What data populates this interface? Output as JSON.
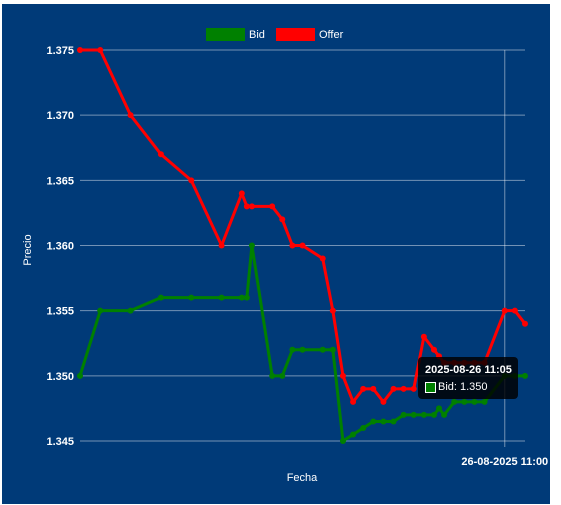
{
  "colors": {
    "panel_bg": "#003a78",
    "bid": "#008000",
    "offer": "#ff0000",
    "grid": "rgba(255,255,255,0.45)"
  },
  "chart_data": {
    "type": "line",
    "title": "",
    "xlabel": "Fecha",
    "ylabel": "Precio",
    "ylim": [
      1.345,
      1.375
    ],
    "y_ticks": [
      "1.375",
      "1.370",
      "1.365",
      "1.360",
      "1.355",
      "1.350",
      "1.345"
    ],
    "x_tick_labels": [
      "26-08-2025 11:00"
    ],
    "legend": {
      "position": "top",
      "entries": [
        "Bid",
        "Offer"
      ]
    },
    "grid": true,
    "x": [
      0,
      2,
      5,
      8,
      11,
      14,
      16,
      16.5,
      17,
      19,
      20,
      21,
      22,
      24,
      25,
      26,
      27,
      28,
      29,
      30,
      31,
      32,
      33,
      34,
      35,
      35.5,
      36,
      37,
      38,
      39,
      40,
      42,
      43,
      44
    ],
    "series": [
      {
        "name": "Bid",
        "values": [
          1.35,
          1.355,
          1.355,
          1.356,
          1.356,
          1.356,
          1.356,
          1.356,
          1.36,
          1.35,
          1.35,
          1.352,
          1.352,
          1.352,
          1.352,
          1.345,
          1.3455,
          1.346,
          1.3465,
          1.3465,
          1.3465,
          1.347,
          1.347,
          1.347,
          1.347,
          1.3475,
          1.347,
          1.348,
          1.348,
          1.348,
          1.348,
          1.35,
          1.35,
          1.35
        ]
      },
      {
        "name": "Offer",
        "values": [
          1.375,
          1.375,
          1.37,
          1.367,
          1.365,
          1.36,
          1.364,
          1.363,
          1.363,
          1.363,
          1.362,
          1.36,
          1.36,
          1.359,
          1.355,
          1.35,
          1.348,
          1.349,
          1.349,
          1.348,
          1.349,
          1.349,
          1.349,
          1.353,
          1.352,
          1.3515,
          1.351,
          1.351,
          1.351,
          1.351,
          1.351,
          1.355,
          1.355,
          1.354
        ]
      }
    ],
    "x_tick_at_index": 31
  },
  "tooltip": {
    "title": "2025-08-26 11:05",
    "body": "Bid: 1.350"
  }
}
